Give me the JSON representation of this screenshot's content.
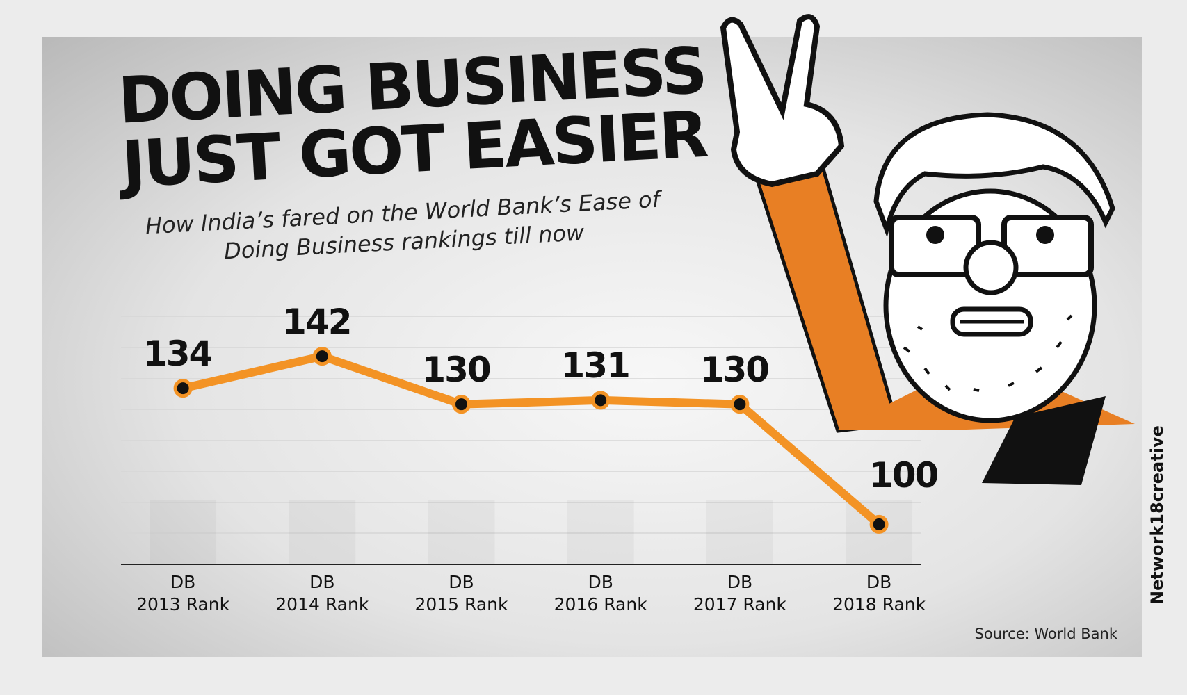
{
  "chart_data": {
    "type": "line",
    "title": "DOING BUSINESS\nJUST GOT EASIER",
    "subtitle": "How India’s fared on the World Bank’s Ease of\nDoing Business rankings till now",
    "categories": [
      "DB\n2013 Rank",
      "DB\n2014 Rank",
      "DB\n2015 Rank",
      "DB\n2016 Rank",
      "DB\n2017 Rank",
      "DB\n2018 Rank"
    ],
    "values": [
      134,
      142,
      130,
      131,
      130,
      100
    ],
    "color": "#f39325",
    "ylim": [
      90,
      152
    ],
    "source": "Source: World Bank",
    "credit": "Network18creative"
  }
}
